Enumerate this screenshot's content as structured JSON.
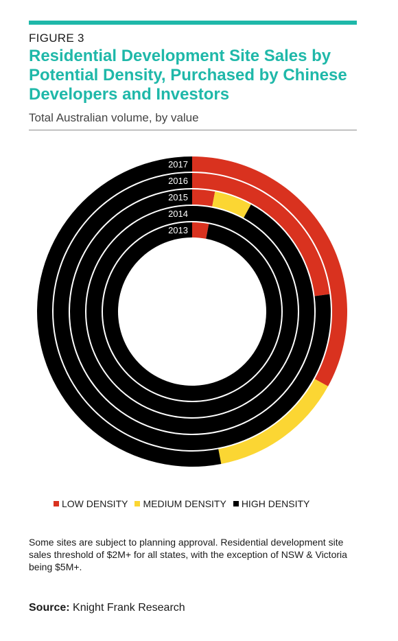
{
  "figure_label": "FIGURE 3",
  "title": "Residential Development Site Sales by Potential Density, Purchased by Chinese Developers and Investors",
  "subtitle": "Total Australian volume, by value",
  "colors": {
    "accent": "#1fb8a9",
    "low": "#d9321f",
    "medium": "#fbd633",
    "high": "#000000"
  },
  "chart_data": {
    "type": "donut",
    "unit": "%",
    "categories": [
      "2017",
      "2016",
      "2015",
      "2014",
      "2013"
    ],
    "series": [
      {
        "name": "LOW DENSITY",
        "color": "#d9321f",
        "values": [
          33,
          23,
          3,
          0,
          3
        ]
      },
      {
        "name": "MEDIUM DENSITY",
        "color": "#fbd633",
        "values": [
          14,
          0,
          5,
          0,
          0
        ]
      },
      {
        "name": "HIGH DENSITY",
        "color": "#000000",
        "values": [
          53,
          77,
          92,
          100,
          97
        ]
      }
    ],
    "legend_position": "bottom"
  },
  "legend": [
    {
      "label": "LOW DENSITY",
      "color": "#d9321f"
    },
    {
      "label": "MEDIUM DENSITY",
      "color": "#fbd633"
    },
    {
      "label": "HIGH DENSITY",
      "color": "#000000"
    }
  ],
  "note": "Some sites are subject to planning approval. Residential development site sales threshold of $2M+ for all states, with the exception of NSW & Victoria being $5M+.",
  "source": {
    "label": "Source:",
    "text": "Knight Frank Research"
  }
}
